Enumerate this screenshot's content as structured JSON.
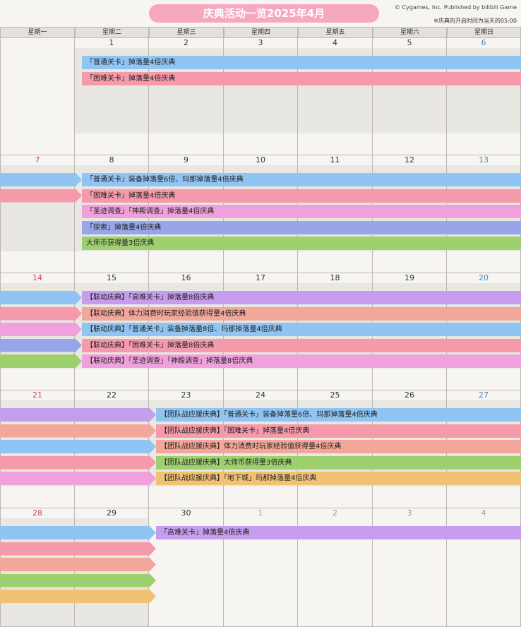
{
  "title": "庆典活动一览2025年4月",
  "copyright": "© Cygames, Inc. Published by bilibili Game",
  "note": "※庆典的开启时间为当天的05:00",
  "weekdays": [
    "星期一",
    "星期二",
    "星期三",
    "星期四",
    "星期五",
    "星期六",
    "星期日"
  ],
  "colors": {
    "blue": "#90c4f2",
    "pink": "#f59aab",
    "violet": "#f0a0dc",
    "slate": "#97a6e8",
    "green": "#9fd06f",
    "purple": "#c69cec",
    "salmon": "#f3a79a",
    "orange": "#f1c174",
    "sun_red": "#d8415b",
    "sat_blue": "#4a84c4",
    "gray_day": "#9a9a9a"
  },
  "weeks": [
    {
      "days": [
        "",
        "1",
        "2",
        "3",
        "4",
        "5",
        "6"
      ],
      "day_colors": [
        "",
        "",
        "",
        "",
        "",
        "",
        "sat_blue"
      ],
      "bars": [
        {
          "color": "blue",
          "start": 1,
          "end": 7,
          "label": "「普通关卡」掉落量4倍庆典"
        },
        {
          "color": "pink",
          "start": 1,
          "end": 7,
          "label": "「困难关卡」掉落量4倍庆典"
        }
      ],
      "arrows": []
    },
    {
      "days": [
        "7",
        "8",
        "9",
        "10",
        "11",
        "12",
        "13"
      ],
      "day_colors": [
        "sun_red",
        "",
        "",
        "",
        "",
        "",
        "sat_blue"
      ],
      "bars": [
        {
          "color": "blue",
          "start": 1,
          "end": 7,
          "label": "「普通关卡」装备掉落量6倍、玛那掉落量4倍庆典"
        },
        {
          "color": "pink",
          "start": 1,
          "end": 7,
          "label": "「困难关卡」掉落量4倍庆典"
        },
        {
          "color": "violet",
          "start": 1,
          "end": 7,
          "label": "「圣迹调查」「神殿调查」掉落量4倍庆典"
        },
        {
          "color": "slate",
          "start": 1,
          "end": 7,
          "label": "「探索」掉落量4倍庆典"
        },
        {
          "color": "green",
          "start": 1,
          "end": 7,
          "label": "大师币获得量3倍庆典"
        }
      ],
      "arrows": [
        {
          "color": "blue",
          "end": 1
        },
        {
          "color": "pink",
          "end": 1
        }
      ]
    },
    {
      "days": [
        "14",
        "15",
        "16",
        "17",
        "18",
        "19",
        "20"
      ],
      "day_colors": [
        "sun_red",
        "",
        "",
        "",
        "",
        "",
        "sat_blue"
      ],
      "bars": [
        {
          "color": "purple",
          "start": 1,
          "end": 7,
          "label": "【联动庆典】「高难关卡」掉落量8倍庆典"
        },
        {
          "color": "salmon",
          "start": 1,
          "end": 7,
          "label": "【联动庆典】体力消费时玩家经验值获得量4倍庆典"
        },
        {
          "color": "blue",
          "start": 1,
          "end": 7,
          "label": "【联动庆典】「普通关卡」装备掉落量8倍、玛那掉落量4倍庆典"
        },
        {
          "color": "pink",
          "start": 1,
          "end": 7,
          "label": "【联动庆典】「困难关卡」掉落量8倍庆典"
        },
        {
          "color": "violet",
          "start": 1,
          "end": 7,
          "label": "【联动庆典】「圣迹调查」「神殿调查」掉落量8倍庆典"
        }
      ],
      "arrows": [
        {
          "color": "blue",
          "end": 1
        },
        {
          "color": "pink",
          "end": 1
        },
        {
          "color": "violet",
          "end": 1
        },
        {
          "color": "slate",
          "end": 1
        },
        {
          "color": "green",
          "end": 1
        }
      ]
    },
    {
      "days": [
        "21",
        "22",
        "23",
        "24",
        "25",
        "26",
        "27"
      ],
      "day_colors": [
        "sun_red",
        "",
        "",
        "",
        "",
        "",
        "sat_blue"
      ],
      "bars": [
        {
          "color": "blue",
          "start": 2,
          "end": 7,
          "label": "【团队战应援庆典】「普通关卡」装备掉落量6倍、玛那掉落量4倍庆典"
        },
        {
          "color": "pink",
          "start": 2,
          "end": 7,
          "label": "【团队战应援庆典】「困难关卡」掉落量4倍庆典"
        },
        {
          "color": "salmon",
          "start": 2,
          "end": 7,
          "label": "【团队战应援庆典】体力消费时玩家经验值获得量4倍庆典"
        },
        {
          "color": "green",
          "start": 2,
          "end": 7,
          "label": "【团队战应援庆典】大师币获得量3倍庆典"
        },
        {
          "color": "orange",
          "start": 2,
          "end": 7,
          "label": "【团队战应援庆典】「地下城」玛那掉落量4倍庆典"
        }
      ],
      "arrows": [
        {
          "color": "purple",
          "end": 2
        },
        {
          "color": "salmon",
          "end": 2
        },
        {
          "color": "blue",
          "end": 2
        },
        {
          "color": "pink",
          "end": 2
        },
        {
          "color": "violet",
          "end": 2
        }
      ]
    },
    {
      "days": [
        "28",
        "29",
        "30",
        "1",
        "2",
        "3",
        "4"
      ],
      "day_colors": [
        "sun_red",
        "",
        "",
        "gray_day",
        "gray_day",
        "gray_day",
        "gray_day"
      ],
      "bars": [
        {
          "color": "purple",
          "start": 2,
          "end": 7,
          "label": "「高难关卡」掉落量4倍庆典"
        }
      ],
      "arrows": [
        {
          "color": "blue",
          "end": 2
        },
        {
          "color": "pink",
          "end": 2
        },
        {
          "color": "salmon",
          "end": 2
        },
        {
          "color": "green",
          "end": 2
        },
        {
          "color": "orange",
          "end": 2
        }
      ]
    }
  ]
}
